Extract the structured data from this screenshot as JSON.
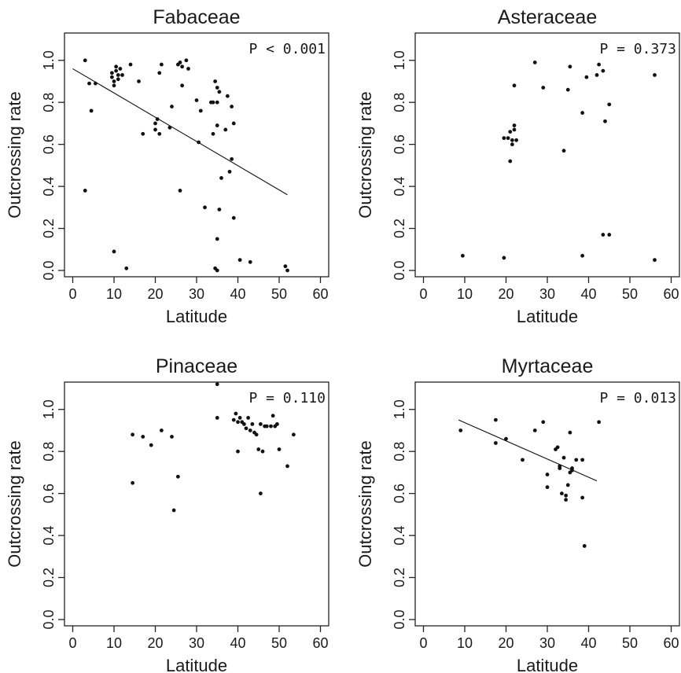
{
  "chart_data": [
    {
      "type": "scatter",
      "title": "Fabaceae",
      "xlabel": "Latitude",
      "ylabel": "Outcrossing rate",
      "xlim": [
        -2,
        62
      ],
      "ylim": [
        -0.03,
        1.13
      ],
      "xticks": [
        0,
        10,
        20,
        30,
        40,
        50,
        60
      ],
      "yticks": [
        "0.0",
        "0.2",
        "0.4",
        "0.6",
        "0.8",
        "1.0"
      ],
      "annotation": "P < 0.001",
      "fit_line": {
        "x1": 0,
        "y1": 0.96,
        "x2": 52,
        "y2": 0.36
      },
      "points": [
        [
          3,
          1.0
        ],
        [
          3,
          0.38
        ],
        [
          4,
          0.89
        ],
        [
          4.5,
          0.76
        ],
        [
          5.5,
          0.89
        ],
        [
          9.5,
          0.92
        ],
        [
          9.5,
          0.94
        ],
        [
          10,
          0.9
        ],
        [
          10,
          0.88
        ],
        [
          10.5,
          0.97
        ],
        [
          10.5,
          0.95
        ],
        [
          11,
          0.93
        ],
        [
          11,
          0.91
        ],
        [
          11.5,
          0.96
        ],
        [
          12,
          0.93
        ],
        [
          14,
          0.98
        ],
        [
          10,
          0.09
        ],
        [
          13,
          0.01
        ],
        [
          16,
          0.9
        ],
        [
          17,
          0.65
        ],
        [
          20,
          0.7
        ],
        [
          20,
          0.67
        ],
        [
          20.5,
          0.72
        ],
        [
          21,
          0.65
        ],
        [
          21,
          0.94
        ],
        [
          21.5,
          0.98
        ],
        [
          23.5,
          0.68
        ],
        [
          24,
          0.78
        ],
        [
          25.5,
          0.98
        ],
        [
          26,
          0.99
        ],
        [
          26.5,
          0.97
        ],
        [
          26.5,
          0.88
        ],
        [
          27.5,
          1.0
        ],
        [
          28,
          0.96
        ],
        [
          26,
          0.38
        ],
        [
          30,
          0.81
        ],
        [
          30.5,
          0.61
        ],
        [
          31,
          0.76
        ],
        [
          32,
          0.3
        ],
        [
          33.5,
          0.8
        ],
        [
          34,
          0.8
        ],
        [
          34,
          0.65
        ],
        [
          34.5,
          0.9
        ],
        [
          35,
          0.87
        ],
        [
          35,
          0.8
        ],
        [
          35,
          0.69
        ],
        [
          35.5,
          0.85
        ],
        [
          36,
          0.44
        ],
        [
          37.5,
          0.83
        ],
        [
          37,
          0.67
        ],
        [
          38,
          0.47
        ],
        [
          38.5,
          0.53
        ],
        [
          38.5,
          0.78
        ],
        [
          39,
          0.7
        ],
        [
          39,
          0.25
        ],
        [
          35,
          0.15
        ],
        [
          35.5,
          0.29
        ],
        [
          34.5,
          0.01
        ],
        [
          35,
          0.0
        ],
        [
          40.5,
          0.05
        ],
        [
          43,
          0.04
        ],
        [
          51.5,
          0.02
        ],
        [
          52,
          0.0
        ]
      ]
    },
    {
      "type": "scatter",
      "title": "Asteraceae",
      "xlabel": "Latitude",
      "ylabel": "Outcrossing rate",
      "xlim": [
        -2,
        62
      ],
      "ylim": [
        -0.03,
        1.13
      ],
      "xticks": [
        0,
        10,
        20,
        30,
        40,
        50,
        60
      ],
      "yticks": [
        "0.0",
        "0.2",
        "0.4",
        "0.6",
        "0.8",
        "1.0"
      ],
      "annotation": "P = 0.373",
      "points": [
        [
          9.5,
          0.07
        ],
        [
          19.5,
          0.06
        ],
        [
          19.5,
          0.63
        ],
        [
          20.5,
          0.63
        ],
        [
          21,
          0.52
        ],
        [
          21,
          0.66
        ],
        [
          21.5,
          0.6
        ],
        [
          21.5,
          0.62
        ],
        [
          22,
          0.69
        ],
        [
          22,
          0.88
        ],
        [
          22.5,
          0.62
        ],
        [
          22,
          0.67
        ],
        [
          27,
          0.99
        ],
        [
          29,
          0.87
        ],
        [
          34,
          0.57
        ],
        [
          35,
          0.86
        ],
        [
          35.5,
          0.97
        ],
        [
          38.5,
          0.75
        ],
        [
          39.5,
          0.92
        ],
        [
          42,
          0.93
        ],
        [
          42.5,
          0.98
        ],
        [
          43.5,
          0.95
        ],
        [
          44,
          0.71
        ],
        [
          45,
          0.79
        ],
        [
          38.5,
          0.07
        ],
        [
          43.5,
          0.17
        ],
        [
          45,
          0.17
        ],
        [
          56,
          0.93
        ],
        [
          56,
          0.05
        ]
      ]
    },
    {
      "type": "scatter",
      "title": "Pinaceae",
      "xlabel": "Latitude",
      "ylabel": "Outcrossing rate",
      "xlim": [
        -2,
        62
      ],
      "ylim": [
        -0.03,
        1.13
      ],
      "xticks": [
        0,
        10,
        20,
        30,
        40,
        50,
        60
      ],
      "yticks": [
        "0.0",
        "0.2",
        "0.4",
        "0.6",
        "0.8",
        "1.0"
      ],
      "annotation": "P = 0.110",
      "points": [
        [
          14.5,
          0.65
        ],
        [
          14.5,
          0.88
        ],
        [
          17,
          0.87
        ],
        [
          19,
          0.83
        ],
        [
          21.5,
          0.9
        ],
        [
          24,
          0.87
        ],
        [
          24.5,
          0.52
        ],
        [
          25.5,
          0.68
        ],
        [
          35,
          1.12
        ],
        [
          35,
          0.96
        ],
        [
          39,
          0.95
        ],
        [
          39.5,
          0.98
        ],
        [
          40,
          0.94
        ],
        [
          40,
          0.8
        ],
        [
          40.5,
          0.96
        ],
        [
          41,
          0.94
        ],
        [
          41.5,
          0.93
        ],
        [
          42,
          0.91
        ],
        [
          42.5,
          0.96
        ],
        [
          43,
          0.9
        ],
        [
          43.5,
          0.93
        ],
        [
          44,
          0.89
        ],
        [
          44.5,
          0.88
        ],
        [
          45,
          0.81
        ],
        [
          45.5,
          0.6
        ],
        [
          45.5,
          0.93
        ],
        [
          46,
          0.8
        ],
        [
          46.5,
          0.92
        ],
        [
          47,
          0.92
        ],
        [
          48,
          0.92
        ],
        [
          48.5,
          0.97
        ],
        [
          49,
          0.92
        ],
        [
          49.5,
          0.93
        ],
        [
          50,
          0.81
        ],
        [
          52,
          0.73
        ],
        [
          53.5,
          0.88
        ]
      ]
    },
    {
      "type": "scatter",
      "title": "Myrtaceae",
      "xlabel": "Latitude",
      "ylabel": "Outcrossing rate",
      "xlim": [
        -2,
        62
      ],
      "ylim": [
        -0.03,
        1.13
      ],
      "xticks": [
        0,
        10,
        20,
        30,
        40,
        50,
        60
      ],
      "yticks": [
        "0.0",
        "0.2",
        "0.4",
        "0.6",
        "0.8",
        "1.0"
      ],
      "annotation": "P = 0.013",
      "fit_line": {
        "x1": 8.5,
        "y1": 0.95,
        "x2": 42,
        "y2": 0.66
      },
      "points": [
        [
          9,
          0.9
        ],
        [
          17.5,
          0.95
        ],
        [
          17.5,
          0.84
        ],
        [
          20,
          0.86
        ],
        [
          24,
          0.76
        ],
        [
          27,
          0.9
        ],
        [
          29,
          0.94
        ],
        [
          30,
          0.69
        ],
        [
          30,
          0.63
        ],
        [
          32,
          0.81
        ],
        [
          32.5,
          0.82
        ],
        [
          33,
          0.72
        ],
        [
          33,
          0.73
        ],
        [
          33.5,
          0.6
        ],
        [
          34,
          0.77
        ],
        [
          34.5,
          0.59
        ],
        [
          34.5,
          0.57
        ],
        [
          35,
          0.64
        ],
        [
          35.5,
          0.89
        ],
        [
          35.5,
          0.7
        ],
        [
          36,
          0.72
        ],
        [
          36,
          0.71
        ],
        [
          37,
          0.76
        ],
        [
          38.5,
          0.76
        ],
        [
          38.5,
          0.58
        ],
        [
          39,
          0.35
        ],
        [
          42.5,
          0.94
        ]
      ]
    }
  ]
}
